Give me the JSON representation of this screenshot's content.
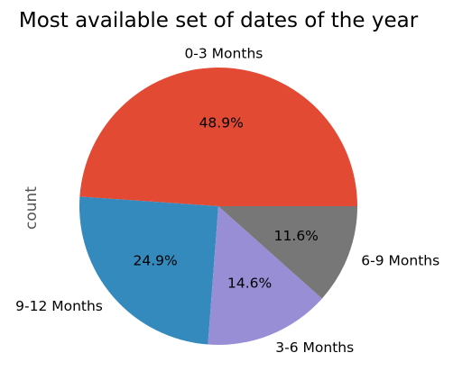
{
  "chart_data": {
    "type": "pie",
    "title": "Most available set of dates of the year",
    "ylabel": "count",
    "xlabel": "",
    "slices": [
      {
        "label": "0-3 Months",
        "value": 48.9,
        "pct_label": "48.9%",
        "color": "#E24A33"
      },
      {
        "label": "9-12 Months",
        "value": 24.9,
        "pct_label": "24.9%",
        "color": "#348ABD"
      },
      {
        "label": "3-6 Months",
        "value": 14.6,
        "pct_label": "14.6%",
        "color": "#988ED5"
      },
      {
        "label": "6-9 Months",
        "value": 11.6,
        "pct_label": "11.6%",
        "color": "#777777"
      }
    ],
    "start_angle": 0,
    "direction": "counterclockwise"
  }
}
